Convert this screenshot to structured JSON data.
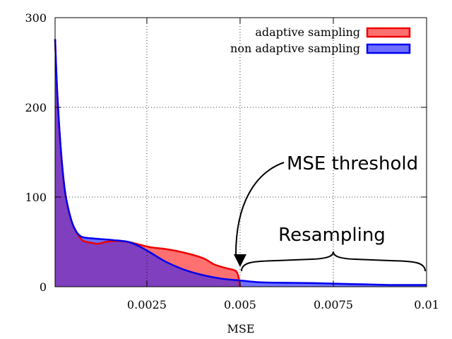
{
  "chart_data": {
    "type": "area",
    "title": "",
    "xlabel": "MSE",
    "ylabel": "",
    "xlim": [
      0.0,
      0.01
    ],
    "ylim": [
      0,
      300
    ],
    "grid": true,
    "legend_position": "top-right",
    "x_ticks": [
      {
        "value": 0.0025,
        "label": "0.0025"
      },
      {
        "value": 0.005,
        "label": "0.005"
      },
      {
        "value": 0.0075,
        "label": "0.0075"
      },
      {
        "value": 0.01,
        "label": "0.01"
      }
    ],
    "y_ticks": [
      {
        "value": 0,
        "label": "0"
      },
      {
        "value": 100,
        "label": "100"
      },
      {
        "value": 200,
        "label": "200"
      },
      {
        "value": 300,
        "label": "300"
      }
    ],
    "series": [
      {
        "name": "adaptive sampling",
        "line_color": "#ee0000",
        "fill_color": "#ff7070",
        "points": [
          [
            0.0,
            276
          ],
          [
            0.0001,
            215
          ],
          [
            0.0002,
            150
          ],
          [
            0.0003,
            108
          ],
          [
            0.0004,
            86
          ],
          [
            0.0005,
            71
          ],
          [
            0.0006,
            62
          ],
          [
            0.0007,
            55
          ],
          [
            0.0008,
            51
          ],
          [
            0.001,
            49
          ],
          [
            0.0012,
            48
          ],
          [
            0.0014,
            50
          ],
          [
            0.0017,
            51
          ],
          [
            0.002,
            50
          ],
          [
            0.0023,
            47
          ],
          [
            0.0026,
            44
          ],
          [
            0.003,
            42
          ],
          [
            0.0035,
            38
          ],
          [
            0.004,
            32
          ],
          [
            0.0043,
            25
          ],
          [
            0.0046,
            21
          ],
          [
            0.0048,
            19
          ],
          [
            0.0049,
            17
          ],
          [
            0.00495,
            12
          ],
          [
            0.005,
            0
          ]
        ]
      },
      {
        "name": "non adaptive sampling",
        "line_color": "#0000ee",
        "fill_color": "#7070ff",
        "points": [
          [
            0.0,
            276
          ],
          [
            0.0001,
            215
          ],
          [
            0.0002,
            150
          ],
          [
            0.0003,
            108
          ],
          [
            0.0004,
            86
          ],
          [
            0.0005,
            71
          ],
          [
            0.0006,
            62
          ],
          [
            0.0007,
            57
          ],
          [
            0.0008,
            55
          ],
          [
            0.001,
            54
          ],
          [
            0.0013,
            53
          ],
          [
            0.0016,
            52
          ],
          [
            0.002,
            50
          ],
          [
            0.0023,
            45
          ],
          [
            0.0026,
            38
          ],
          [
            0.003,
            28
          ],
          [
            0.0035,
            19
          ],
          [
            0.004,
            13
          ],
          [
            0.0045,
            9
          ],
          [
            0.005,
            7
          ],
          [
            0.0055,
            5
          ],
          [
            0.006,
            4.5
          ],
          [
            0.007,
            4
          ],
          [
            0.008,
            3
          ],
          [
            0.009,
            2
          ],
          [
            0.0095,
            2
          ],
          [
            0.01,
            2
          ]
        ]
      }
    ],
    "overlap_fill_color": "#7f3fbf",
    "annotations": [
      {
        "text": "MSE threshold",
        "target_x": 0.005,
        "target_y": 20
      },
      {
        "text": "Resampling",
        "brace_from_x": 0.005,
        "brace_to_x": 0.01
      }
    ]
  }
}
